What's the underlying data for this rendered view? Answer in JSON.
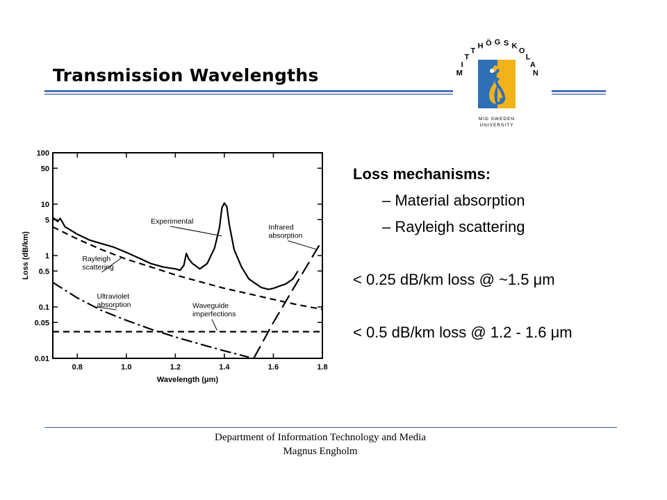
{
  "slide": {
    "title": "Transmission Wavelengths"
  },
  "logo": {
    "arc_text": "MITTHÖGSKOLAN",
    "caption_line1": "MID SWEDEN",
    "caption_line2": "UNIVERSITY",
    "colors": {
      "blue": "#2f6fb5",
      "yellow": "#f2b31a",
      "rule": "#2f55a6"
    }
  },
  "bullets": {
    "heading": "Loss mechanisms:",
    "items": [
      "– Material absorption",
      "– Rayleigh scattering"
    ],
    "notes": [
      "< 0.25 dB/km loss @ ~1.5 μm",
      "< 0.5 dB/km loss @ 1.2 - 1.6 μm"
    ]
  },
  "footer": {
    "line1": "Department of Information Technology and Media",
    "line2": "Magnus Engholm"
  },
  "chart_data": {
    "type": "line",
    "xlabel": "Wavelength (μm)",
    "ylabel": "Loss (dB/km)",
    "xlim": [
      0.7,
      1.8
    ],
    "ylim": [
      0.01,
      100
    ],
    "y_scale": "log",
    "x_ticks": [
      0.8,
      1.0,
      1.2,
      1.4,
      1.6,
      1.8
    ],
    "x_tick_labels": [
      "0.8",
      "1.0",
      "1.2",
      "1.4",
      "1.6",
      "1.8"
    ],
    "y_ticks": [
      100,
      50,
      10,
      5,
      1,
      0.5,
      0.1,
      0.05,
      0.01
    ],
    "y_tick_labels": [
      "100",
      "50",
      "10",
      "5",
      "1",
      "0.5",
      "0.1",
      "0.05",
      "0.01"
    ],
    "grid": false,
    "series": [
      {
        "name": "Experimental",
        "style": "solid",
        "x": [
          0.7,
          0.72,
          0.73,
          0.74,
          0.75,
          0.76,
          0.8,
          0.85,
          0.9,
          0.95,
          1.0,
          1.05,
          1.1,
          1.15,
          1.2,
          1.22,
          1.235,
          1.245,
          1.255,
          1.27,
          1.3,
          1.33,
          1.36,
          1.38,
          1.39,
          1.4,
          1.41,
          1.42,
          1.44,
          1.47,
          1.5,
          1.55,
          1.58,
          1.6,
          1.62,
          1.65,
          1.68,
          1.7
        ],
        "y": [
          5.5,
          4.6,
          5.3,
          4.4,
          3.6,
          3.4,
          2.6,
          2.0,
          1.7,
          1.45,
          1.15,
          0.9,
          0.7,
          0.6,
          0.55,
          0.52,
          0.65,
          1.1,
          0.85,
          0.7,
          0.55,
          0.7,
          1.4,
          3.5,
          8.5,
          10.5,
          9.0,
          4.0,
          1.3,
          0.6,
          0.35,
          0.24,
          0.22,
          0.23,
          0.25,
          0.28,
          0.35,
          0.5
        ]
      },
      {
        "name": "Rayleigh scattering",
        "style": "dash",
        "x": [
          0.7,
          0.8,
          0.9,
          1.0,
          1.1,
          1.2,
          1.3,
          1.4,
          1.5,
          1.6,
          1.7,
          1.8
        ],
        "y": [
          3.6,
          2.1,
          1.3,
          0.85,
          0.6,
          0.42,
          0.31,
          0.23,
          0.18,
          0.14,
          0.11,
          0.09
        ]
      },
      {
        "name": "Ultraviolet absorption",
        "style": "long-dash-dot",
        "x": [
          0.7,
          0.8,
          0.9,
          1.0,
          1.1,
          1.2,
          1.3,
          1.4,
          1.5
        ],
        "y": [
          0.3,
          0.15,
          0.085,
          0.055,
          0.037,
          0.026,
          0.019,
          0.014,
          0.0105
        ]
      },
      {
        "name": "Waveguide imperfections",
        "style": "dash",
        "x": [
          0.7,
          1.8
        ],
        "y": [
          0.033,
          0.033
        ]
      },
      {
        "name": "Infrared absorption",
        "style": "long-dash",
        "x": [
          1.52,
          1.6,
          1.7,
          1.8
        ],
        "y": [
          0.01,
          0.05,
          0.32,
          2.0
        ]
      }
    ],
    "annotations": [
      {
        "text": "Experimental",
        "target": [
          1.39,
          2.4
        ]
      },
      {
        "text": "Infrared absorption",
        "target": [
          1.78,
          1.3
        ]
      },
      {
        "text": "Rayleigh scattering",
        "target": [
          0.98,
          0.9
        ]
      },
      {
        "text": "Ultraviolet absorption",
        "target": [
          0.88,
          0.1
        ]
      },
      {
        "text": "Waveguide imperfections",
        "target": [
          1.37,
          0.035
        ]
      }
    ]
  }
}
